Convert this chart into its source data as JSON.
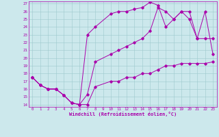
{
  "xlabel": "Windchill (Refroidissement éolien,°C)",
  "xlim": [
    -0.5,
    23.5
  ],
  "ylim": [
    13.7,
    27.3
  ],
  "yticks": [
    14,
    15,
    16,
    17,
    18,
    19,
    20,
    21,
    22,
    23,
    24,
    25,
    26,
    27
  ],
  "xticks": [
    0,
    1,
    2,
    3,
    4,
    5,
    6,
    7,
    8,
    9,
    10,
    11,
    12,
    13,
    14,
    15,
    16,
    17,
    18,
    19,
    20,
    21,
    22,
    23
  ],
  "bg_color": "#cce8ec",
  "line_color": "#aa00aa",
  "line1_x": [
    0,
    1,
    2,
    3,
    4,
    5,
    6,
    7,
    8,
    10,
    11,
    12,
    13,
    14,
    15,
    16,
    17,
    18,
    19,
    20,
    21,
    22,
    23
  ],
  "line1_y": [
    17.5,
    16.5,
    16.0,
    16.0,
    15.2,
    14.2,
    14.0,
    15.3,
    19.5,
    20.5,
    21.0,
    21.5,
    22.0,
    22.5,
    23.5,
    26.5,
    26.0,
    25.0,
    26.0,
    26.0,
    22.5,
    22.5,
    22.5
  ],
  "line2_x": [
    0,
    1,
    2,
    3,
    4,
    5,
    6,
    7,
    8,
    10,
    11,
    12,
    13,
    14,
    15,
    16,
    17,
    18,
    19,
    20,
    21,
    22,
    23
  ],
  "line2_y": [
    17.5,
    16.5,
    16.0,
    16.0,
    15.2,
    14.2,
    14.0,
    23.0,
    24.0,
    25.7,
    26.0,
    26.0,
    26.3,
    26.5,
    27.2,
    26.8,
    24.0,
    25.0,
    26.0,
    25.0,
    22.5,
    26.0,
    20.5
  ],
  "line3_x": [
    0,
    1,
    2,
    3,
    4,
    5,
    6,
    7,
    8,
    10,
    11,
    12,
    13,
    14,
    15,
    16,
    17,
    18,
    19,
    20,
    21,
    22,
    23
  ],
  "line3_y": [
    17.5,
    16.5,
    16.0,
    16.0,
    15.2,
    14.2,
    14.0,
    14.0,
    16.3,
    17.0,
    17.0,
    17.5,
    17.5,
    18.0,
    18.0,
    18.5,
    19.0,
    19.0,
    19.3,
    19.3,
    19.3,
    19.3,
    19.5
  ]
}
